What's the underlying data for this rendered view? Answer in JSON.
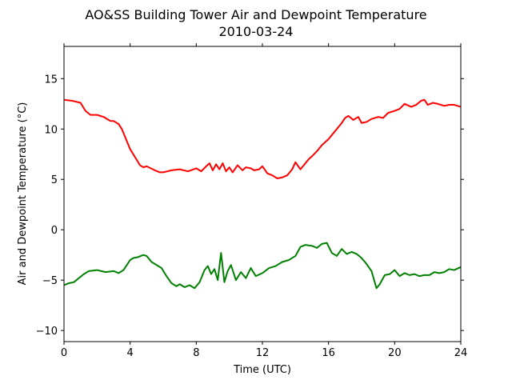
{
  "chart_data": {
    "type": "line",
    "title": "AO&SS Building Tower Air and Dewpoint Temperature",
    "subtitle": "2010-03-24",
    "xlabel": "Time (UTC)",
    "ylabel": "Air and Dewpoint Temperature (°C)",
    "xlim": [
      0,
      24
    ],
    "ylim": [
      -11.1,
      18.2
    ],
    "xticks": [
      0,
      4,
      8,
      12,
      16,
      20,
      24
    ],
    "yticks": [
      -10,
      -5,
      0,
      5,
      10,
      15
    ],
    "xtick_labels": [
      "0",
      "4",
      "8",
      "12",
      "16",
      "20",
      "24"
    ],
    "ytick_labels": [
      "−10",
      "−5",
      "0",
      "5",
      "10",
      "15"
    ],
    "grid": false,
    "series": [
      {
        "color": "#ff0000",
        "x": [
          0,
          0.5,
          1.0,
          1.3,
          1.6,
          2.0,
          2.4,
          2.8,
          3.0,
          3.3,
          3.5,
          3.7,
          4.0,
          4.3,
          4.6,
          4.8,
          5.0,
          5.5,
          5.8,
          6.0,
          6.5,
          7.0,
          7.5,
          8.0,
          8.3,
          8.6,
          8.8,
          9.0,
          9.2,
          9.4,
          9.6,
          9.8,
          10.0,
          10.2,
          10.5,
          10.8,
          11.0,
          11.3,
          11.5,
          11.8,
          12.0,
          12.3,
          12.6,
          12.9,
          13.2,
          13.5,
          13.8,
          14.0,
          14.3,
          14.5,
          14.8,
          15.0,
          15.3,
          15.6,
          16.0,
          16.3,
          16.6,
          16.8,
          17.0,
          17.2,
          17.5,
          17.8,
          18.0,
          18.3,
          18.6,
          19.0,
          19.3,
          19.6,
          20.0,
          20.3,
          20.6,
          21.0,
          21.3,
          21.6,
          21.8,
          22.0,
          22.3,
          22.6,
          23.0,
          23.3,
          23.6,
          24.0
        ],
        "y": [
          12.9,
          12.8,
          12.6,
          11.8,
          11.4,
          11.4,
          11.2,
          10.8,
          10.8,
          10.5,
          10.0,
          9.2,
          8.0,
          7.2,
          6.4,
          6.2,
          6.3,
          5.9,
          5.7,
          5.7,
          5.9,
          6.0,
          5.8,
          6.1,
          5.8,
          6.3,
          6.6,
          5.9,
          6.5,
          6.0,
          6.6,
          5.8,
          6.2,
          5.7,
          6.4,
          5.9,
          6.2,
          6.1,
          5.9,
          6.0,
          6.3,
          5.6,
          5.4,
          5.1,
          5.2,
          5.4,
          6.0,
          6.7,
          6.0,
          6.4,
          7.0,
          7.3,
          7.8,
          8.4,
          9.0,
          9.6,
          10.2,
          10.6,
          11.1,
          11.3,
          10.9,
          11.2,
          10.6,
          10.7,
          11.0,
          11.2,
          11.1,
          11.6,
          11.8,
          12.0,
          12.5,
          12.2,
          12.4,
          12.8,
          12.9,
          12.4,
          12.6,
          12.5,
          12.3,
          12.4,
          12.4,
          12.2
        ]
      },
      {
        "color": "#008000",
        "x": [
          0,
          0.3,
          0.6,
          0.9,
          1.2,
          1.5,
          2.0,
          2.5,
          3.0,
          3.3,
          3.6,
          3.8,
          4.0,
          4.2,
          4.5,
          4.8,
          5.0,
          5.3,
          5.6,
          5.9,
          6.2,
          6.5,
          6.8,
          7.0,
          7.3,
          7.6,
          7.9,
          8.2,
          8.5,
          8.7,
          8.9,
          9.1,
          9.3,
          9.5,
          9.7,
          9.9,
          10.1,
          10.4,
          10.7,
          11.0,
          11.3,
          11.6,
          12.0,
          12.4,
          12.8,
          13.2,
          13.6,
          14.0,
          14.3,
          14.6,
          15.0,
          15.3,
          15.6,
          15.9,
          16.2,
          16.5,
          16.8,
          17.1,
          17.4,
          17.7,
          18.0,
          18.3,
          18.6,
          18.9,
          19.1,
          19.4,
          19.7,
          20.0,
          20.3,
          20.6,
          20.9,
          21.2,
          21.5,
          21.8,
          22.1,
          22.4,
          22.7,
          23.0,
          23.3,
          23.6,
          24.0
        ],
        "y": [
          -5.5,
          -5.3,
          -5.2,
          -4.8,
          -4.4,
          -4.1,
          -4.0,
          -4.2,
          -4.1,
          -4.3,
          -4.0,
          -3.5,
          -3.0,
          -2.8,
          -2.7,
          -2.5,
          -2.6,
          -3.2,
          -3.5,
          -3.8,
          -4.6,
          -5.3,
          -5.6,
          -5.4,
          -5.7,
          -5.5,
          -5.8,
          -5.2,
          -4.0,
          -3.6,
          -4.4,
          -3.9,
          -5.0,
          -2.3,
          -5.2,
          -4.1,
          -3.5,
          -5.0,
          -4.2,
          -4.8,
          -3.8,
          -4.6,
          -4.3,
          -3.8,
          -3.6,
          -3.2,
          -3.0,
          -2.6,
          -1.7,
          -1.5,
          -1.6,
          -1.8,
          -1.4,
          -1.3,
          -2.3,
          -2.6,
          -1.9,
          -2.4,
          -2.2,
          -2.4,
          -2.8,
          -3.4,
          -4.1,
          -5.8,
          -5.4,
          -4.5,
          -4.4,
          -4.0,
          -4.6,
          -4.3,
          -4.5,
          -4.4,
          -4.6,
          -4.5,
          -4.5,
          -4.2,
          -4.3,
          -4.2,
          -3.9,
          -4.0,
          -3.7
        ]
      }
    ]
  }
}
